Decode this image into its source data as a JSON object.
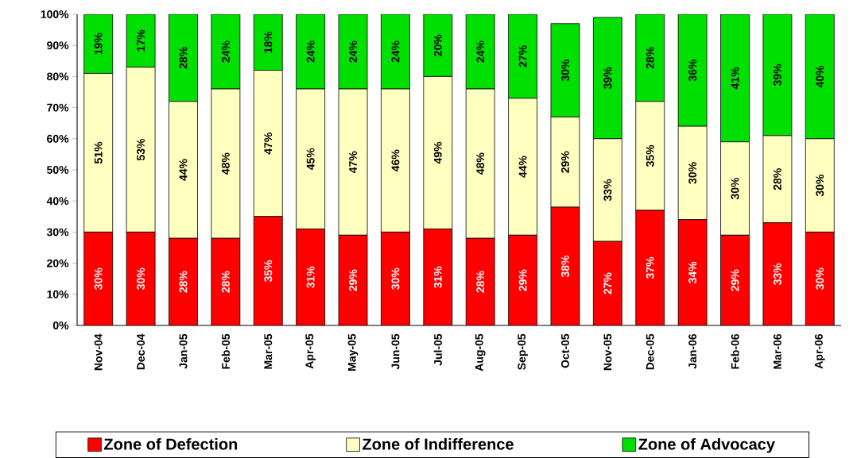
{
  "chart_data": {
    "type": "bar",
    "stacked": true,
    "categories": [
      "Nov-04",
      "Dec-04",
      "Jan-05",
      "Feb-05",
      "Mar-05",
      "Apr-05",
      "May-05",
      "Jun-05",
      "Jul-05",
      "Aug-05",
      "Sep-05",
      "Oct-05",
      "Nov-05",
      "Dec-05",
      "Jan-06",
      "Feb-06",
      "Mar-06",
      "Apr-06"
    ],
    "series": [
      {
        "name": "Zone of Defection",
        "color": "#ff0000",
        "values": [
          30,
          30,
          28,
          28,
          35,
          31,
          29,
          30,
          31,
          28,
          29,
          38,
          27,
          37,
          34,
          29,
          33,
          30
        ],
        "value_labels": [
          "30%",
          "30%",
          "28%",
          "28%",
          "35%",
          "31%",
          "29%",
          "30%",
          "31%",
          "28%",
          "29%",
          "38%",
          "27%",
          "37%",
          "34%",
          "29%",
          "33%",
          "30%"
        ]
      },
      {
        "name": "Zone of Indifference",
        "color": "#ffffc0",
        "values": [
          51,
          53,
          44,
          48,
          47,
          45,
          47,
          46,
          49,
          48,
          44,
          29,
          33,
          35,
          30,
          30,
          28,
          30
        ],
        "value_labels": [
          "51%",
          "53%",
          "44%",
          "48%",
          "47%",
          "45%",
          "47%",
          "46%",
          "49%",
          "48%",
          "44%",
          "29%",
          "33%",
          "35%",
          "30%",
          "30%",
          "28%",
          "30%"
        ]
      },
      {
        "name": "Zone of Advocacy",
        "color": "#00e000",
        "values": [
          19,
          17,
          28,
          24,
          18,
          24,
          24,
          24,
          20,
          24,
          27,
          30,
          39,
          28,
          36,
          41,
          39,
          40
        ],
        "value_labels": [
          "19%",
          "17%",
          "28%",
          "24%",
          "18%",
          "24%",
          "24%",
          "24%",
          "20%",
          "24%",
          "27%",
          "30%",
          "39%",
          "28%",
          "36%",
          "41%",
          "39%",
          "40%"
        ]
      }
    ],
    "ylim": [
      0,
      100
    ],
    "yticks": [
      {
        "value": 0,
        "label": "0%"
      },
      {
        "value": 10,
        "label": "10%"
      },
      {
        "value": 20,
        "label": "20%"
      },
      {
        "value": 30,
        "label": "30%"
      },
      {
        "value": 40,
        "label": "40%"
      },
      {
        "value": 50,
        "label": "50%"
      },
      {
        "value": 60,
        "label": "60%"
      },
      {
        "value": 70,
        "label": "70%"
      },
      {
        "value": 80,
        "label": "80%"
      },
      {
        "value": 90,
        "label": "90%"
      },
      {
        "value": 100,
        "label": "100%"
      }
    ],
    "legend": "bottom",
    "grid": false
  }
}
